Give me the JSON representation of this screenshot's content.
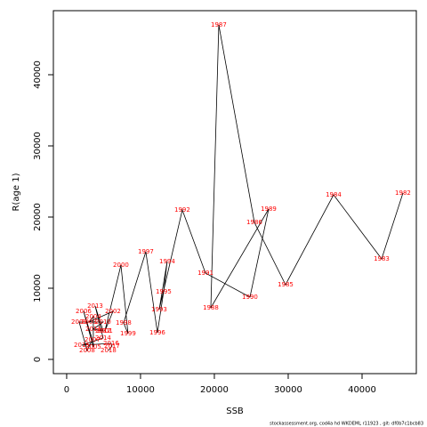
{
  "chart_data": {
    "type": "line",
    "xlabel": "SSB",
    "ylabel": "R(age 1)",
    "footer": "stockassessment.org, cod4a hd WKDEML r11923 , git: df0b7c1bcb83",
    "color": "#000000",
    "label_color": "#ff0000",
    "xlim": [
      -1800,
      47350
    ],
    "ylim": [
      -2000,
      49000
    ],
    "xticks": [
      0,
      10000,
      20000,
      30000,
      40000
    ],
    "yticks": [
      0,
      10000,
      20000,
      30000,
      40000
    ],
    "labels": [
      "1982",
      "1983",
      "1984",
      "1985",
      "1986",
      "1987",
      "1988",
      "1989",
      "1990",
      "1991",
      "1992",
      "1993",
      "1994",
      "1995",
      "1996",
      "1997",
      "1998",
      "1999",
      "2000",
      "2001",
      "2002",
      "2003",
      "2004",
      "2005",
      "2006",
      "2007",
      "2008",
      "2009",
      "2010",
      "2011",
      "2012",
      "2013",
      "2014",
      "2015",
      "2016",
      "2017",
      "2018"
    ],
    "x": [
      45540,
      42650,
      36145,
      29640,
      25420,
      20600,
      19520,
      27350,
      24820,
      18800,
      15660,
      12530,
      13610,
      13130,
      12290,
      10720,
      7710,
      8310,
      7350,
      5180,
      6270,
      3010,
      3610,
      3610,
      2290,
      3490,
      2770,
      1690,
      4940,
      3610,
      4940,
      3860,
      4940,
      2050,
      6020,
      6140,
      5660
    ],
    "y": [
      23375,
      14125,
      23125,
      10500,
      19250,
      47000,
      7250,
      21125,
      8750,
      12125,
      21000,
      7000,
      13750,
      9500,
      3750,
      15125,
      5125,
      3625,
      13250,
      4000,
      6750,
      5250,
      6000,
      1750,
      6750,
      2750,
      1250,
      5250,
      5250,
      4250,
      4000,
      7500,
      3000,
      2000,
      2250,
      1875,
      1250
    ]
  }
}
